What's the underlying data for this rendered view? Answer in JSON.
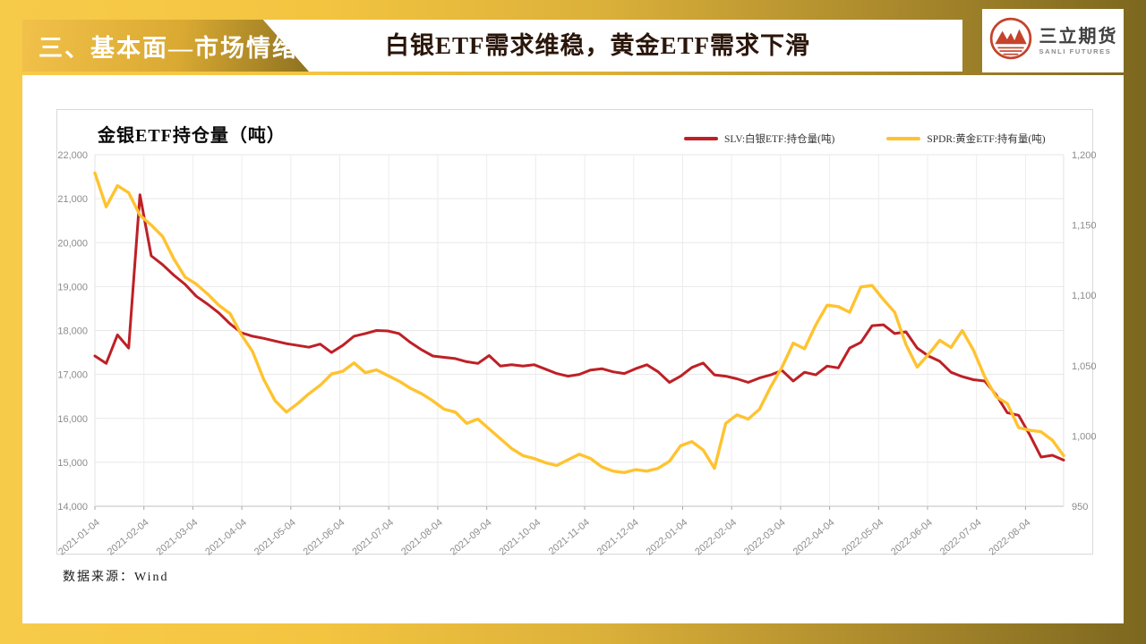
{
  "slide": {
    "section_banner": "三、基本面—市场情绪",
    "title": "白银ETF需求维稳，黄金ETF需求下滑",
    "source_note": "数据来源：Wind"
  },
  "logo": {
    "company_cn": "三立期货",
    "company_en": "SANLI FUTURES",
    "icon_color": "#C4432B"
  },
  "colors": {
    "frame_gold_light": "#F7CB4A",
    "frame_gold_dark": "#7C671F",
    "silver_line": "#BE2026",
    "gold_line": "#FFC330"
  },
  "chart_data": {
    "type": "line",
    "title": "金银ETF持仓量（吨）",
    "grid": true,
    "legend_position": "top-right",
    "x_start_date": "2021-01-04",
    "x_interval": "weekly",
    "x_tick_labels": [
      "2021-01-04",
      "2021-02-04",
      "2021-03-04",
      "2021-04-04",
      "2021-05-04",
      "2021-06-04",
      "2021-07-04",
      "2021-08-04",
      "2021-09-04",
      "2021-10-04",
      "2021-11-04",
      "2021-12-04",
      "2022-01-04",
      "2022-02-04",
      "2022-03-04",
      "2022-04-04",
      "2022-05-04",
      "2022-06-04",
      "2022-07-04",
      "2022-08-04"
    ],
    "left_axis": {
      "min": 14000,
      "max": 22000,
      "step": 1000,
      "tick_labels": [
        "22,000",
        "21,000",
        "20,000",
        "19,000",
        "18,000",
        "17,000",
        "16,000",
        "15,000",
        "14,000"
      ]
    },
    "right_axis": {
      "min": 950,
      "max": 1200,
      "step": 50,
      "tick_labels": [
        "1,200",
        "1,150",
        "1,100",
        "1,050",
        "1,000",
        "950"
      ]
    },
    "series": [
      {
        "name": "SLV:白银ETF:持仓量(吨)",
        "axis": "left",
        "color": "#BE2026",
        "values": [
          17420,
          17250,
          17900,
          17600,
          21090,
          19700,
          19500,
          19260,
          19050,
          18780,
          18600,
          18400,
          18150,
          17950,
          17870,
          17820,
          17760,
          17700,
          17660,
          17620,
          17690,
          17500,
          17660,
          17870,
          17930,
          18000,
          17990,
          17930,
          17730,
          17560,
          17420,
          17390,
          17360,
          17290,
          17250,
          17430,
          17190,
          17220,
          17190,
          17220,
          17120,
          17020,
          16960,
          17000,
          17100,
          17130,
          17060,
          17020,
          17130,
          17220,
          17060,
          16820,
          16960,
          17160,
          17260,
          16990,
          16960,
          16900,
          16820,
          16920,
          16990,
          17090,
          16850,
          17050,
          16990,
          17190,
          17150,
          17600,
          17730,
          18110,
          18130,
          17930,
          17970,
          17600,
          17420,
          17300,
          17050,
          16950,
          16880,
          16850,
          16540,
          16130,
          16070,
          15620,
          15120,
          15160,
          15050
        ]
      },
      {
        "name": "SPDR:黄金ETF:持有量(吨)",
        "axis": "right",
        "color": "#FFC330",
        "values": [
          1187,
          1163,
          1178,
          1173,
          1157,
          1150,
          1142,
          1126,
          1113,
          1108,
          1101,
          1093,
          1087,
          1072,
          1060,
          1040,
          1025,
          1017,
          1023,
          1030,
          1036,
          1044,
          1046,
          1052,
          1045,
          1047,
          1043,
          1039,
          1034,
          1030,
          1025,
          1019,
          1017,
          1009,
          1012,
          1005,
          998,
          991,
          986,
          984,
          981,
          979,
          983,
          987,
          984,
          978,
          975,
          974,
          976,
          975,
          977,
          982,
          993,
          996,
          990,
          977,
          1009,
          1015,
          1012,
          1019,
          1035,
          1049,
          1066,
          1062,
          1079,
          1093,
          1092,
          1088,
          1106,
          1107,
          1097,
          1088,
          1065,
          1049,
          1058,
          1068,
          1063,
          1075,
          1061,
          1042,
          1028,
          1023,
          1006,
          1004,
          1003,
          997,
          986
        ]
      }
    ]
  }
}
